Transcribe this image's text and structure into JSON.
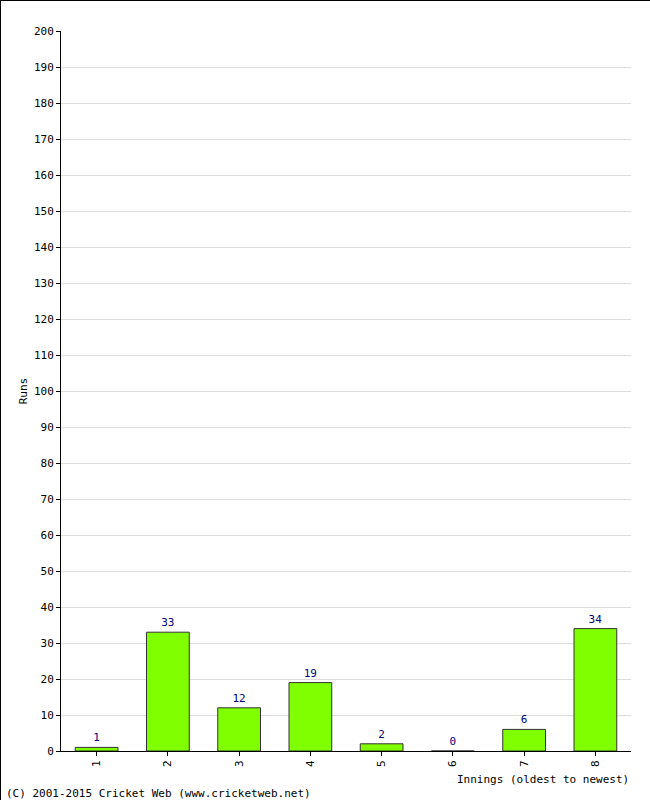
{
  "chart_data": {
    "type": "bar",
    "categories": [
      "1",
      "2",
      "3",
      "4",
      "5",
      "6",
      "7",
      "8"
    ],
    "values": [
      1,
      33,
      12,
      19,
      2,
      0,
      6,
      34
    ],
    "color": "#80ff00",
    "ylim": [
      0,
      200
    ],
    "yticks": [
      0,
      10,
      20,
      30,
      40,
      50,
      60,
      70,
      80,
      90,
      100,
      110,
      120,
      130,
      140,
      150,
      160,
      170,
      180,
      190,
      200
    ],
    "grid": true,
    "data_labels": true,
    "x_label": "Innings (oldest to newest)",
    "y_label": "Runs",
    "annotations": [
      "(C) 2001-2015 Cricket Web (www.cricketweb.net)"
    ]
  }
}
